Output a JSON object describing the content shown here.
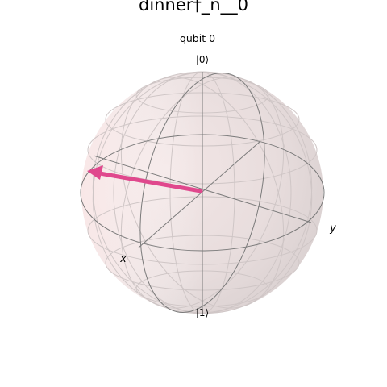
{
  "title": "dinner†_n__0",
  "subtitle": "qubit 0",
  "labels": {
    "ket_zero": "|0⟩",
    "ket_one": "|1⟩",
    "x_axis": "x",
    "y_axis": "y"
  },
  "colors": {
    "vector": "#e0488d",
    "sphere_left": "#f8e4e4",
    "sphere_right": "#dcd4d4",
    "wire": "#7a7a7a",
    "grid": "#cfc8c8"
  }
}
